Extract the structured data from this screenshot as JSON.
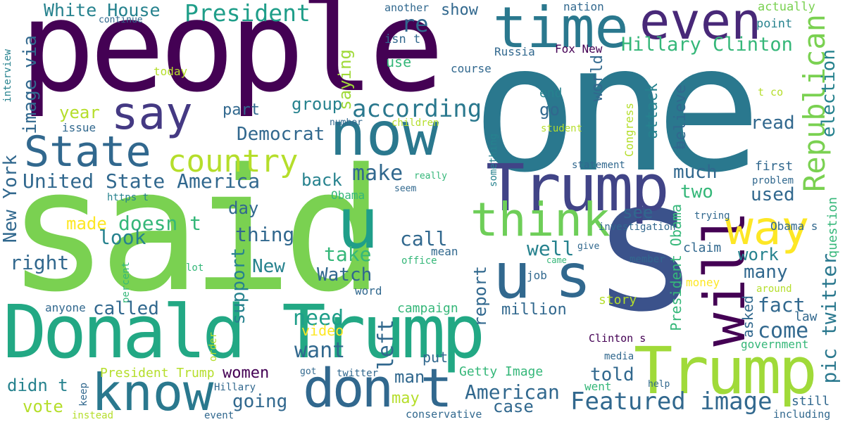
{
  "title": "Word cloud",
  "palette": {
    "dark_purple": "#440154",
    "purple": "#482878",
    "indigo": "#3e4989",
    "blue": "#31688e",
    "teal": "#26828e",
    "green_teal": "#1f9e89",
    "green": "#35b779",
    "light_green": "#6ece58",
    "lime": "#b5de2b",
    "yellow": "#fde725"
  },
  "words": [
    {
      "text": "people"
    },
    {
      "text": "one"
    },
    {
      "text": "said"
    },
    {
      "text": "s"
    },
    {
      "text": "Donald Trump"
    },
    {
      "text": "Trump"
    },
    {
      "text": "Trump"
    },
    {
      "text": "time"
    },
    {
      "text": "even"
    },
    {
      "text": "now"
    },
    {
      "text": "say"
    },
    {
      "text": "State"
    },
    {
      "text": "u"
    },
    {
      "text": "u"
    },
    {
      "text": "s"
    },
    {
      "text": "know"
    },
    {
      "text": "don t"
    },
    {
      "text": "will"
    },
    {
      "text": "way"
    },
    {
      "text": "think"
    },
    {
      "text": "Republican"
    },
    {
      "text": "according"
    },
    {
      "text": "country"
    },
    {
      "text": "White House"
    },
    {
      "text": "President"
    },
    {
      "text": "Hillary Clinton"
    },
    {
      "text": "United State America"
    },
    {
      "text": "Featured image"
    },
    {
      "text": "American"
    },
    {
      "text": "New York"
    },
    {
      "text": "image via"
    },
    {
      "text": "pic twitter"
    },
    {
      "text": "election"
    },
    {
      "text": "Democrat"
    },
    {
      "text": "make"
    },
    {
      "text": "re"
    },
    {
      "text": "show"
    },
    {
      "text": "another"
    },
    {
      "text": "isn t"
    },
    {
      "text": "nation"
    },
    {
      "text": "actually"
    },
    {
      "text": "point"
    },
    {
      "text": "continue"
    },
    {
      "text": "Russia"
    },
    {
      "text": "Fox New"
    },
    {
      "text": "use"
    },
    {
      "text": "course"
    },
    {
      "text": "today"
    },
    {
      "text": "interview"
    },
    {
      "text": "year"
    },
    {
      "text": "issue"
    },
    {
      "text": "part"
    },
    {
      "text": "group"
    },
    {
      "text": "saying"
    },
    {
      "text": "go"
    },
    {
      "text": "end"
    },
    {
      "text": "world"
    },
    {
      "text": "attack"
    },
    {
      "text": "believe"
    },
    {
      "text": "read"
    },
    {
      "text": "t co"
    },
    {
      "text": "Congress"
    },
    {
      "text": "student"
    },
    {
      "text": "number"
    },
    {
      "text": "children"
    },
    {
      "text": "something"
    },
    {
      "text": "statement"
    },
    {
      "text": "really"
    },
    {
      "text": "seem"
    },
    {
      "text": "m"
    },
    {
      "text": "much"
    },
    {
      "text": "two"
    },
    {
      "text": "first"
    },
    {
      "text": "problem"
    },
    {
      "text": "used"
    },
    {
      "text": "back"
    },
    {
      "text": "Obama"
    },
    {
      "text": "https t"
    },
    {
      "text": "day"
    },
    {
      "text": "made"
    },
    {
      "text": "doesn t"
    },
    {
      "text": "thing"
    },
    {
      "text": "look"
    },
    {
      "text": "right"
    },
    {
      "text": "New"
    },
    {
      "text": "support"
    },
    {
      "text": "see"
    },
    {
      "text": "call"
    },
    {
      "text": "take"
    },
    {
      "text": "mean"
    },
    {
      "text": "office"
    },
    {
      "text": "well"
    },
    {
      "text": "Watch"
    },
    {
      "text": "President Obama"
    },
    {
      "text": "Obama s"
    },
    {
      "text": "trying"
    },
    {
      "text": "investigation"
    },
    {
      "text": "question"
    },
    {
      "text": "give"
    },
    {
      "text": "claim"
    },
    {
      "text": "work"
    },
    {
      "text": "member"
    },
    {
      "text": "many"
    },
    {
      "text": "lot"
    },
    {
      "text": "percent"
    },
    {
      "text": "job"
    },
    {
      "text": "came"
    },
    {
      "text": "report"
    },
    {
      "text": "word"
    },
    {
      "text": "money"
    },
    {
      "text": "around"
    },
    {
      "text": "anyone"
    },
    {
      "text": "called"
    },
    {
      "text": "campaign"
    },
    {
      "text": "million"
    },
    {
      "text": "story"
    },
    {
      "text": "fact"
    },
    {
      "text": "asked"
    },
    {
      "text": "law"
    },
    {
      "text": "need"
    },
    {
      "text": "left"
    },
    {
      "text": "come"
    },
    {
      "text": "want"
    },
    {
      "text": "video"
    },
    {
      "text": "order"
    },
    {
      "text": "Clinton s"
    },
    {
      "text": "government"
    },
    {
      "text": "women"
    },
    {
      "text": "President Trump"
    },
    {
      "text": "got"
    },
    {
      "text": "twitter"
    },
    {
      "text": "put"
    },
    {
      "text": "man"
    },
    {
      "text": "Getty Image"
    },
    {
      "text": "told"
    },
    {
      "text": "media"
    },
    {
      "text": "went"
    },
    {
      "text": "help"
    },
    {
      "text": "didn t"
    },
    {
      "text": "keep"
    },
    {
      "text": "Hillary"
    },
    {
      "text": "going"
    },
    {
      "text": "may"
    },
    {
      "text": "case"
    },
    {
      "text": "vote"
    },
    {
      "text": "instead"
    },
    {
      "text": "event"
    },
    {
      "text": "conservative"
    },
    {
      "text": "still"
    },
    {
      "text": "including"
    }
  ]
}
